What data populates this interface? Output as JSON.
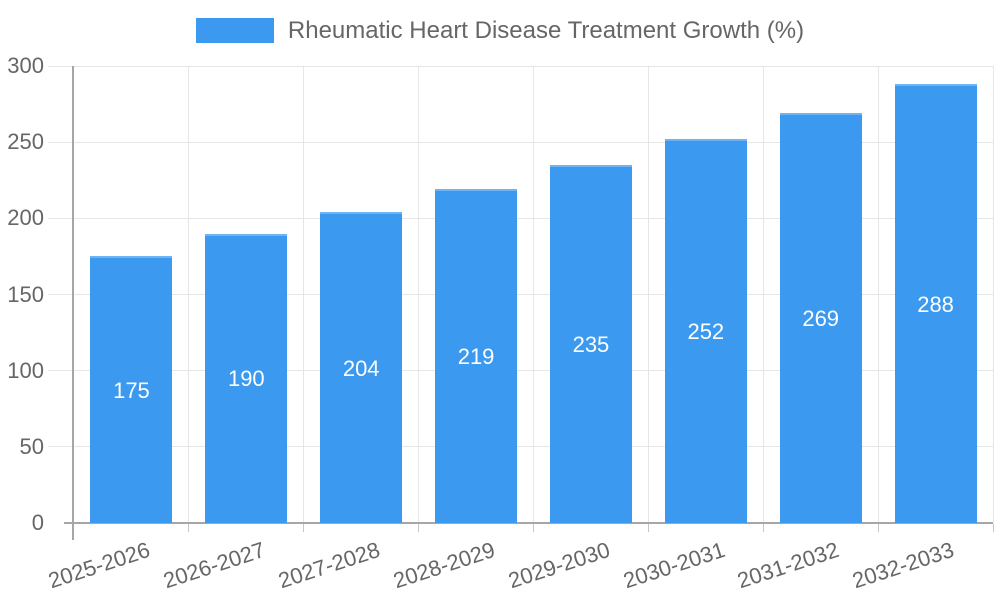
{
  "legend": {
    "label": "Rheumatic Heart Disease Treatment Growth (%)"
  },
  "chart_data": {
    "type": "bar",
    "title": "",
    "xlabel": "",
    "ylabel": "",
    "categories": [
      "2025-2026",
      "2026-2027",
      "2027-2028",
      "2028-2029",
      "2029-2030",
      "2030-2031",
      "2031-2032",
      "2032-2033"
    ],
    "series": [
      {
        "name": "Rheumatic Heart Disease Treatment Growth (%)",
        "values": [
          175,
          190,
          204,
          219,
          235,
          252,
          269,
          288
        ]
      }
    ],
    "value_labels_shown": true,
    "ylim": [
      0,
      300
    ],
    "yticks": [
      0,
      50,
      100,
      150,
      200,
      250,
      300
    ],
    "grid": true,
    "legend_position": "top-center",
    "colors": {
      "bar_fill": "#3b99ef",
      "bar_top_edge": "#6eb3f3",
      "value_label": "#ffffff",
      "axis_text": "#666666",
      "grid_line": "#e6e6e6",
      "axis_line": "#a6a6a6"
    }
  }
}
